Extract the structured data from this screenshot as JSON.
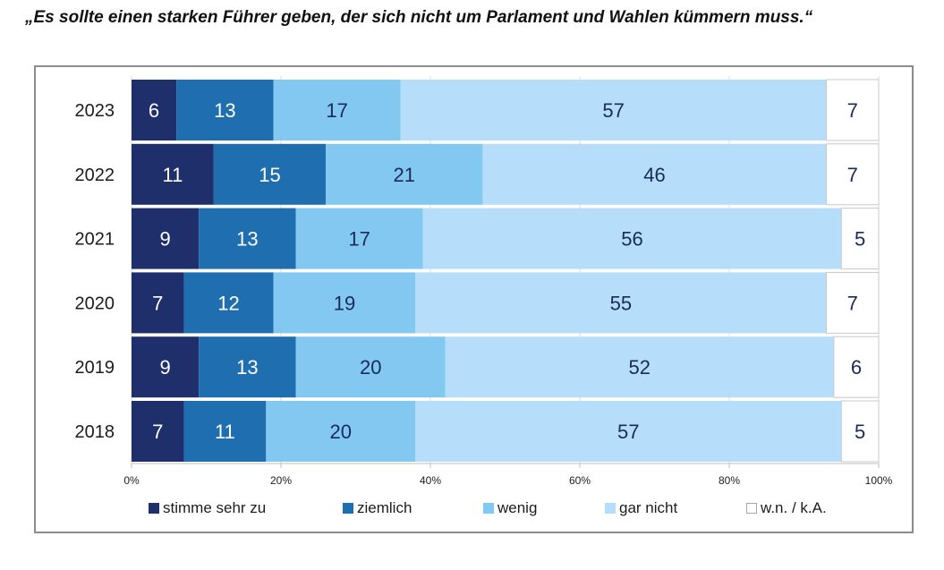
{
  "title": "„Es sollte einen starken Führer geben, der sich nicht um Parlament und Wahlen kümmern muss.“",
  "chart_data": {
    "type": "bar",
    "orientation": "horizontal",
    "stacked": "100%",
    "categories": [
      "2023",
      "2022",
      "2021",
      "2020",
      "2019",
      "2018"
    ],
    "series": [
      {
        "name": "stimme sehr zu",
        "color": "#1f2f6b",
        "label_color": "#ffffff",
        "values": [
          6,
          11,
          9,
          7,
          9,
          7
        ]
      },
      {
        "name": "ziemlich",
        "color": "#1f6fb0",
        "label_color": "#ffffff",
        "values": [
          13,
          15,
          13,
          12,
          13,
          11
        ]
      },
      {
        "name": "wenig",
        "color": "#82c8f1",
        "label_color": "#1a2a5a",
        "values": [
          17,
          21,
          17,
          19,
          20,
          20
        ]
      },
      {
        "name": "gar nicht",
        "color": "#b6defa",
        "label_color": "#1a2a5a",
        "values": [
          57,
          46,
          56,
          55,
          52,
          57
        ]
      },
      {
        "name": "w.n. / k.A.",
        "color": "#ffffff",
        "label_color": "#1a2a5a",
        "values": [
          7,
          7,
          5,
          7,
          6,
          5
        ]
      }
    ],
    "xticks": [
      "0%",
      "20%",
      "40%",
      "60%",
      "80%",
      "100%"
    ],
    "xlim": [
      0,
      100
    ],
    "xlabel": "",
    "ylabel": "",
    "grid": "vertical",
    "legend": "bottom"
  }
}
